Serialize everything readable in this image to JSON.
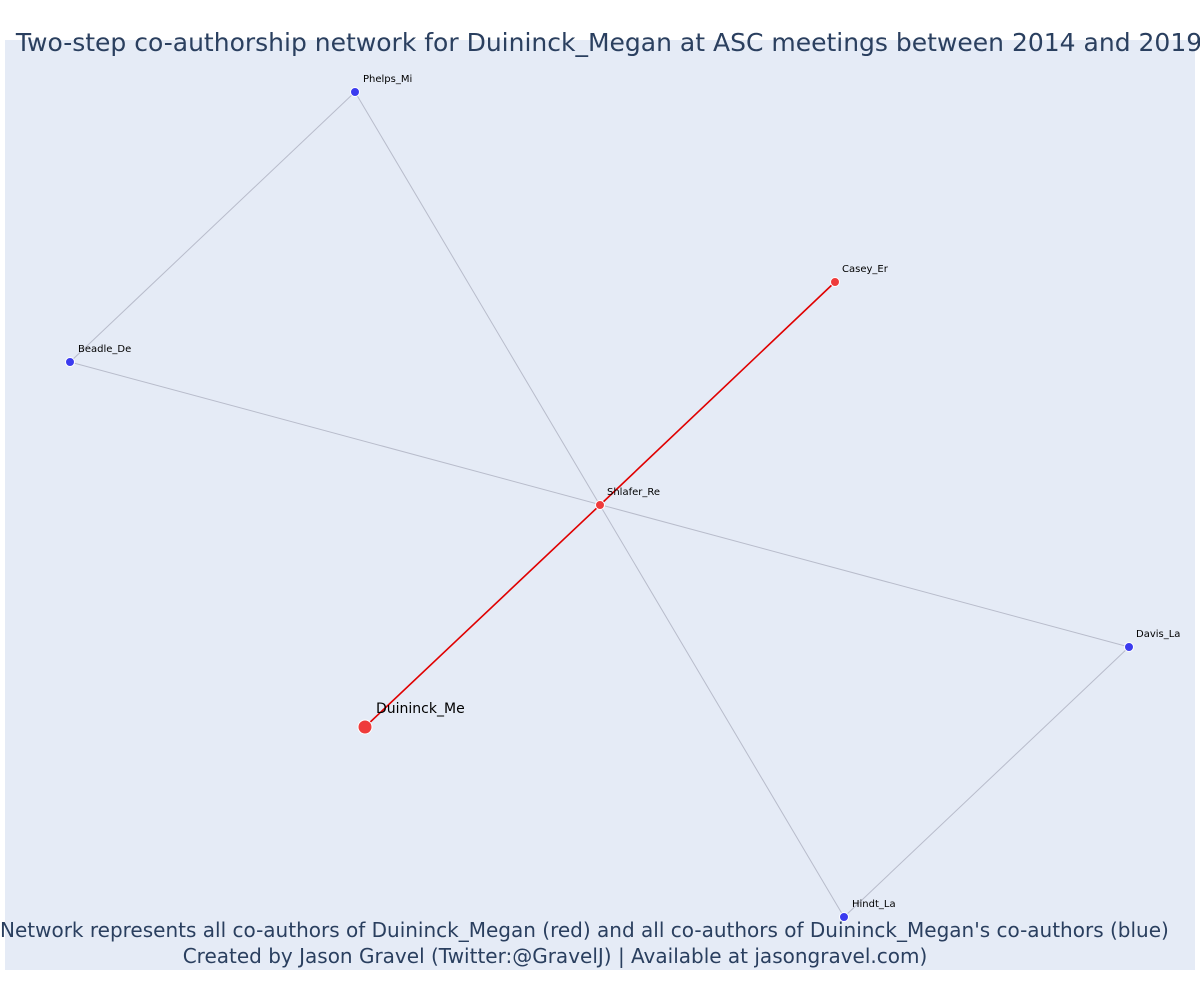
{
  "title": "Two-step co-authorship network for Duininck_Megan at ASC meetings between 2014 and 2019",
  "footer": {
    "line1": "Network represents all co-authors of Duininck_Megan (red) and all co-authors of Duininck_Megan's co-authors (blue)",
    "line2": "Created by Jason Gravel (Twitter:@GravelJ) | Available at jasongravel.com)"
  },
  "colors": {
    "background": "#e5ebf6",
    "direct_coauthor": "#ef3b3b",
    "second_step_coauthor": "#3b3bef",
    "direct_edge": "#e00000",
    "other_edge": "#b8bccb",
    "text": "#2a3f5f"
  },
  "nodes": [
    {
      "id": "Duininck_Me",
      "label": "Duininck_Me",
      "group": "focal"
    },
    {
      "id": "Shlafer_Re",
      "label": "Shlafer_Re",
      "group": "direct"
    },
    {
      "id": "Casey_Er",
      "label": "Casey_Er",
      "group": "direct"
    },
    {
      "id": "Phelps_Mi",
      "label": "Phelps_Mi",
      "group": "second_step"
    },
    {
      "id": "Beadle_De",
      "label": "Beadle_De",
      "group": "second_step"
    },
    {
      "id": "Davis_La",
      "label": "Davis_La",
      "group": "second_step"
    },
    {
      "id": "Hindt_La",
      "label": "Hindt_La",
      "group": "second_step"
    }
  ],
  "edges": [
    {
      "source": "Duininck_Me",
      "target": "Shlafer_Re",
      "type": "direct"
    },
    {
      "source": "Shlafer_Re",
      "target": "Casey_Er",
      "type": "direct"
    },
    {
      "source": "Phelps_Mi",
      "target": "Beadle_De",
      "type": "other"
    },
    {
      "source": "Phelps_Mi",
      "target": "Hindt_La",
      "type": "other"
    },
    {
      "source": "Beadle_De",
      "target": "Davis_La",
      "type": "other"
    },
    {
      "source": "Davis_La",
      "target": "Hindt_La",
      "type": "other"
    }
  ]
}
